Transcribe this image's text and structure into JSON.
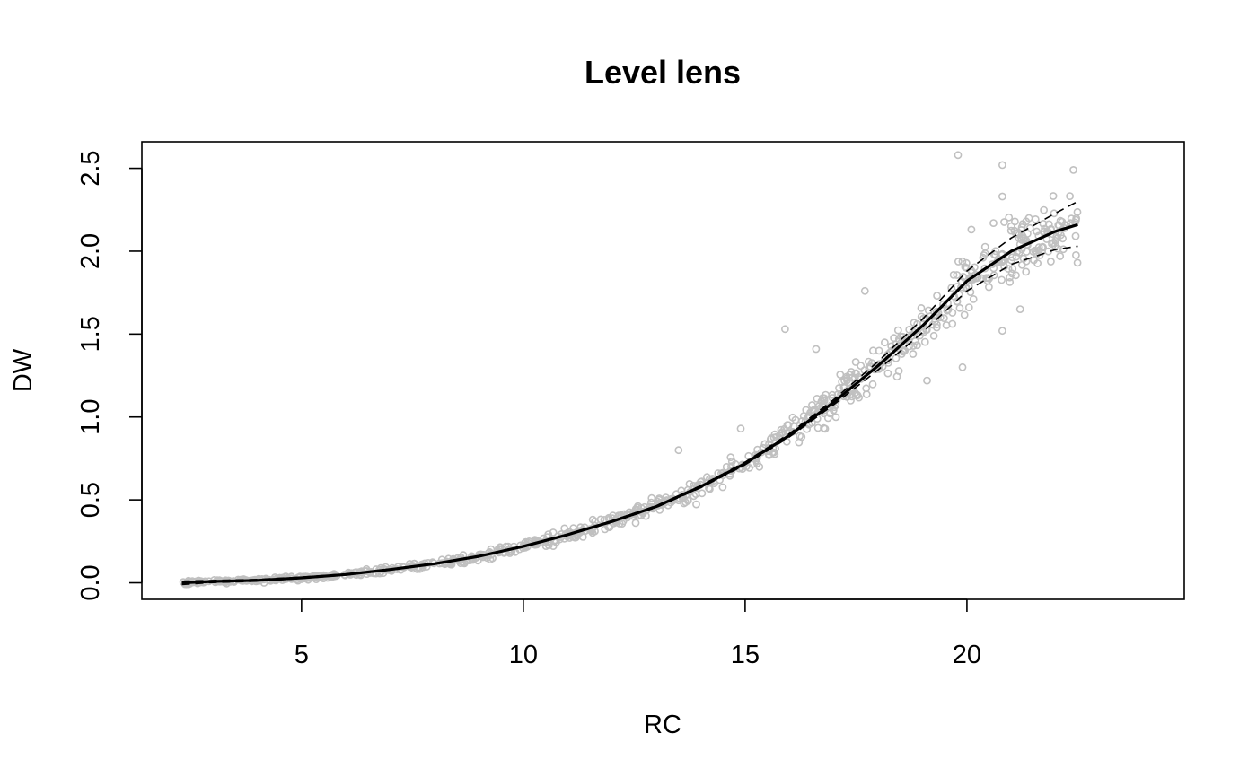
{
  "chart_data": {
    "type": "scatter",
    "title": "Level lens",
    "xlabel": "RC",
    "ylabel": "DW",
    "xlim": [
      1.4,
      24.9
    ],
    "ylim": [
      -0.1,
      2.66
    ],
    "xticks": [
      5,
      10,
      15,
      20
    ],
    "yticks": [
      0.0,
      0.5,
      1.0,
      1.5,
      2.0,
      2.5
    ],
    "xtick_labels": [
      "5",
      "10",
      "15",
      "20"
    ],
    "ytick_labels": [
      "0.0",
      "0.5",
      "1.0",
      "1.5",
      "2.0",
      "2.5"
    ],
    "grid": false,
    "legend": "none",
    "colors": {
      "points": "#c0c0c0",
      "fit": "#000000",
      "band": "#000000"
    },
    "point_cloud": {
      "count": 900,
      "x_range": [
        2.3,
        22.5
      ],
      "trend": "follows fitted curve",
      "spread": "increases with RC"
    },
    "outliers": [
      {
        "x": 19.8,
        "y": 2.58
      },
      {
        "x": 20.8,
        "y": 2.52
      },
      {
        "x": 22.4,
        "y": 2.49
      },
      {
        "x": 20.8,
        "y": 2.33
      },
      {
        "x": 20.1,
        "y": 2.13
      },
      {
        "x": 21.0,
        "y": 2.15
      },
      {
        "x": 22.1,
        "y": 1.97
      },
      {
        "x": 15.9,
        "y": 1.53
      },
      {
        "x": 17.7,
        "y": 1.76
      },
      {
        "x": 19.1,
        "y": 1.22
      },
      {
        "x": 14.9,
        "y": 0.93
      },
      {
        "x": 13.5,
        "y": 0.8
      },
      {
        "x": 16.6,
        "y": 1.41
      },
      {
        "x": 20.8,
        "y": 1.52
      },
      {
        "x": 19.9,
        "y": 1.3
      },
      {
        "x": 21.2,
        "y": 1.65
      }
    ],
    "series": [
      {
        "style": "solid",
        "x": [
          2.3,
          3,
          4,
          5,
          6,
          7,
          8,
          9,
          10,
          11,
          12,
          13,
          14,
          15,
          16,
          17,
          18,
          19,
          20,
          21,
          22,
          22.5
        ],
        "y": [
          0.0,
          0.008,
          0.015,
          0.03,
          0.05,
          0.08,
          0.115,
          0.16,
          0.22,
          0.29,
          0.37,
          0.46,
          0.58,
          0.72,
          0.89,
          1.09,
          1.31,
          1.55,
          1.82,
          2.0,
          2.12,
          2.16
        ]
      },
      {
        "style": "dashed",
        "x": [
          2.3,
          3,
          4,
          5,
          6,
          7,
          8,
          9,
          10,
          11,
          12,
          13,
          14,
          15,
          16,
          17,
          18,
          19,
          20,
          21,
          22,
          22.5
        ],
        "y": [
          0.01,
          0.014,
          0.02,
          0.034,
          0.053,
          0.083,
          0.118,
          0.163,
          0.223,
          0.293,
          0.374,
          0.465,
          0.586,
          0.728,
          0.9,
          1.105,
          1.335,
          1.59,
          1.88,
          2.08,
          2.23,
          2.3
        ]
      },
      {
        "style": "dashed",
        "x": [
          2.3,
          3,
          4,
          5,
          6,
          7,
          8,
          9,
          10,
          11,
          12,
          13,
          14,
          15,
          16,
          17,
          18,
          19,
          20,
          21,
          22,
          22.5
        ],
        "y": [
          -0.01,
          0.002,
          0.01,
          0.026,
          0.047,
          0.077,
          0.112,
          0.157,
          0.217,
          0.287,
          0.366,
          0.455,
          0.574,
          0.712,
          0.88,
          1.075,
          1.285,
          1.51,
          1.76,
          1.92,
          2.01,
          2.03
        ]
      }
    ]
  }
}
